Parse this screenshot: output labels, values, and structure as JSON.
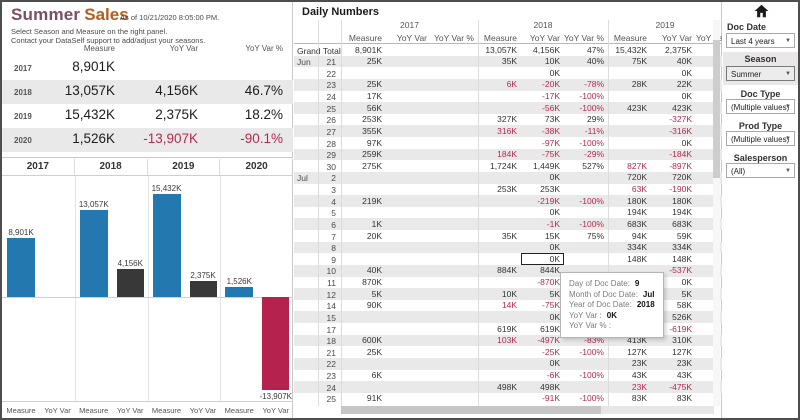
{
  "left_panel": {
    "title_primary": "Summer",
    "title_secondary": "Sales",
    "as_of": "As of 10/21/2020 8:05:00 PM.",
    "subtitle_line1": "Select Season and Measure on the right panel.",
    "subtitle_line2": "Contact your DataSelf support to add/adjust your seasons.",
    "summary": {
      "headers": [
        "Measure",
        "YoY Var",
        "YoY Var %"
      ],
      "rows": [
        {
          "year": "2017",
          "measure": "8,901K",
          "yoy": "",
          "pct": ""
        },
        {
          "year": "2018",
          "measure": "13,057K",
          "yoy": "4,156K",
          "pct": "46.7%"
        },
        {
          "year": "2019",
          "measure": "15,432K",
          "yoy": "2,375K",
          "pct": "18.2%"
        },
        {
          "year": "2020",
          "measure": "1,526K",
          "yoy": "-13,907K",
          "pct": "-90.1%"
        }
      ]
    }
  },
  "chart_data": {
    "type": "bar",
    "title": "",
    "categories": [
      "2017",
      "2018",
      "2019",
      "2020"
    ],
    "series": [
      {
        "name": "Measure",
        "values": [
          8901,
          13057,
          15432,
          1526
        ],
        "labels": [
          "8,901K",
          "13,057K",
          "15,432K",
          "1,526K"
        ]
      },
      {
        "name": "YoY Var",
        "values": [
          null,
          4156,
          2375,
          -13907
        ],
        "labels": [
          "",
          "4,156K",
          "2,375K",
          "-13,907K"
        ]
      }
    ],
    "x_sublabels": [
      "Measure",
      "YoY Var"
    ],
    "xlabel": "",
    "ylabel": "",
    "ylim": [
      -14800,
      16500
    ],
    "grid": false,
    "legend_position": "none"
  },
  "daily_table": {
    "title": "Daily Numbers",
    "year_groups": [
      "2017",
      "2018",
      "2019"
    ],
    "sub_headers": [
      "Measure",
      "YoY Var",
      "YoY Var %"
    ],
    "grand_total": {
      "label": "Grand Total",
      "cells": [
        "8,901K",
        "",
        "",
        "13,057K",
        "4,156K",
        "47%",
        "15,432K",
        "2,375K"
      ],
      "red": []
    },
    "rows": [
      {
        "month": "Jun",
        "day": "21",
        "cells": [
          "25K",
          "",
          "",
          "35K",
          "10K",
          "40%",
          "75K",
          "40K"
        ],
        "red": []
      },
      {
        "month": "",
        "day": "22",
        "cells": [
          "",
          "",
          "",
          "",
          "0K",
          "",
          "",
          "0K"
        ],
        "red": []
      },
      {
        "month": "",
        "day": "23",
        "cells": [
          "25K",
          "",
          "",
          "6K",
          "-20K",
          "-78%",
          "28K",
          "22K"
        ],
        "red": [
          3
        ]
      },
      {
        "month": "",
        "day": "24",
        "cells": [
          "17K",
          "",
          "",
          "",
          "-17K",
          "-100%",
          "",
          "0K"
        ],
        "red": []
      },
      {
        "month": "",
        "day": "25",
        "cells": [
          "56K",
          "",
          "",
          "",
          "-56K",
          "-100%",
          "423K",
          "423K"
        ],
        "red": []
      },
      {
        "month": "",
        "day": "26",
        "cells": [
          "253K",
          "",
          "",
          "327K",
          "73K",
          "29%",
          "",
          "-327K"
        ],
        "red": []
      },
      {
        "month": "",
        "day": "27",
        "cells": [
          "355K",
          "",
          "",
          "316K",
          "-38K",
          "-11%",
          "",
          "-316K"
        ],
        "red": [
          3
        ]
      },
      {
        "month": "",
        "day": "28",
        "cells": [
          "97K",
          "",
          "",
          "",
          "-97K",
          "-100%",
          "",
          "0K"
        ],
        "red": []
      },
      {
        "month": "",
        "day": "29",
        "cells": [
          "259K",
          "",
          "",
          "184K",
          "-75K",
          "-29%",
          "",
          "-184K"
        ],
        "red": [
          3
        ]
      },
      {
        "month": "",
        "day": "30",
        "cells": [
          "275K",
          "",
          "",
          "1,724K",
          "1,449K",
          "527%",
          "827K",
          "-897K"
        ],
        "red": [
          6
        ]
      },
      {
        "month": "Jul",
        "day": "2",
        "cells": [
          "",
          "",
          "",
          "",
          "0K",
          "",
          "720K",
          "720K"
        ],
        "red": []
      },
      {
        "month": "",
        "day": "3",
        "cells": [
          "",
          "",
          "",
          "253K",
          "253K",
          "",
          "63K",
          "-190K"
        ],
        "red": [
          6
        ]
      },
      {
        "month": "",
        "day": "4",
        "cells": [
          "219K",
          "",
          "",
          "",
          "-219K",
          "-100%",
          "180K",
          "180K"
        ],
        "red": []
      },
      {
        "month": "",
        "day": "5",
        "cells": [
          "",
          "",
          "",
          "",
          "0K",
          "",
          "194K",
          "194K"
        ],
        "red": []
      },
      {
        "month": "",
        "day": "6",
        "cells": [
          "1K",
          "",
          "",
          "",
          "-1K",
          "-100%",
          "683K",
          "683K"
        ],
        "red": []
      },
      {
        "month": "",
        "day": "7",
        "cells": [
          "20K",
          "",
          "",
          "35K",
          "15K",
          "75%",
          "94K",
          "59K"
        ],
        "red": []
      },
      {
        "month": "",
        "day": "8",
        "cells": [
          "",
          "",
          "",
          "",
          "0K",
          "",
          "334K",
          "334K"
        ],
        "red": []
      },
      {
        "month": "",
        "day": "9",
        "cells": [
          "",
          "",
          "",
          "",
          "0K",
          "",
          "148K",
          "148K"
        ],
        "red": []
      },
      {
        "month": "",
        "day": "10",
        "cells": [
          "40K",
          "",
          "",
          "884K",
          "844K",
          "",
          "",
          "-537K"
        ],
        "red": []
      },
      {
        "month": "",
        "day": "11",
        "cells": [
          "870K",
          "",
          "",
          "",
          "-870K",
          "",
          "",
          "0K"
        ],
        "red": []
      },
      {
        "month": "",
        "day": "12",
        "cells": [
          "5K",
          "",
          "",
          "10K",
          "5K",
          "",
          "",
          "5K"
        ],
        "red": []
      },
      {
        "month": "",
        "day": "14",
        "cells": [
          "90K",
          "",
          "",
          "14K",
          "-75K",
          "",
          "",
          "58K"
        ],
        "red": [
          3
        ]
      },
      {
        "month": "",
        "day": "15",
        "cells": [
          "",
          "",
          "",
          "",
          "0K",
          "",
          "",
          "526K"
        ],
        "red": []
      },
      {
        "month": "",
        "day": "17",
        "cells": [
          "",
          "",
          "",
          "619K",
          "619K",
          "",
          "",
          "-619K"
        ],
        "red": []
      },
      {
        "month": "",
        "day": "18",
        "cells": [
          "600K",
          "",
          "",
          "103K",
          "-497K",
          "-83%",
          "413K",
          "310K"
        ],
        "red": [
          3
        ]
      },
      {
        "month": "",
        "day": "21",
        "cells": [
          "25K",
          "",
          "",
          "",
          "-25K",
          "-100%",
          "127K",
          "127K"
        ],
        "red": []
      },
      {
        "month": "",
        "day": "22",
        "cells": [
          "",
          "",
          "",
          "",
          "0K",
          "",
          "23K",
          "23K"
        ],
        "red": []
      },
      {
        "month": "",
        "day": "23",
        "cells": [
          "6K",
          "",
          "",
          "",
          "-6K",
          "-100%",
          "43K",
          "43K"
        ],
        "red": []
      },
      {
        "month": "",
        "day": "24",
        "cells": [
          "",
          "",
          "",
          "498K",
          "498K",
          "",
          "23K",
          "-475K"
        ],
        "red": [
          6
        ]
      },
      {
        "month": "",
        "day": "25",
        "cells": [
          "91K",
          "",
          "",
          "",
          "-91K",
          "-100%",
          "83K",
          "83K"
        ],
        "red": []
      }
    ],
    "selected_cell": {
      "row_index": 17,
      "cell_index": 4
    }
  },
  "tooltip": {
    "rows": [
      {
        "label": "Day of Doc Date:",
        "value": "9"
      },
      {
        "label": "Month of Doc Date:",
        "value": "Jul"
      },
      {
        "label": "Year of Doc Date:",
        "value": "2018"
      },
      {
        "label": "YoY Var :",
        "value": "0K"
      },
      {
        "label": "YoY Var % :",
        "value": ""
      }
    ]
  },
  "filters": {
    "doc_date": {
      "label": "Doc Date",
      "value": "Last 4 years"
    },
    "season": {
      "label": "Season",
      "value": "Summer"
    },
    "doc_type": {
      "label": "Doc Type",
      "value": "(Multiple values)"
    },
    "prod_type": {
      "label": "Prod Type",
      "value": "(Multiple values)"
    },
    "salesperson": {
      "label": "Salesperson",
      "value": "(All)"
    }
  },
  "colors": {
    "title_primary": "#7A4E63",
    "title_secondary": "#B55D1F",
    "bar_measure": "#2478B0",
    "bar_yoy_positive": "#383838",
    "bar_yoy_negative": "#B5224E",
    "negative_text": "#B5294E",
    "row_stripe": "#E9E9E9"
  }
}
